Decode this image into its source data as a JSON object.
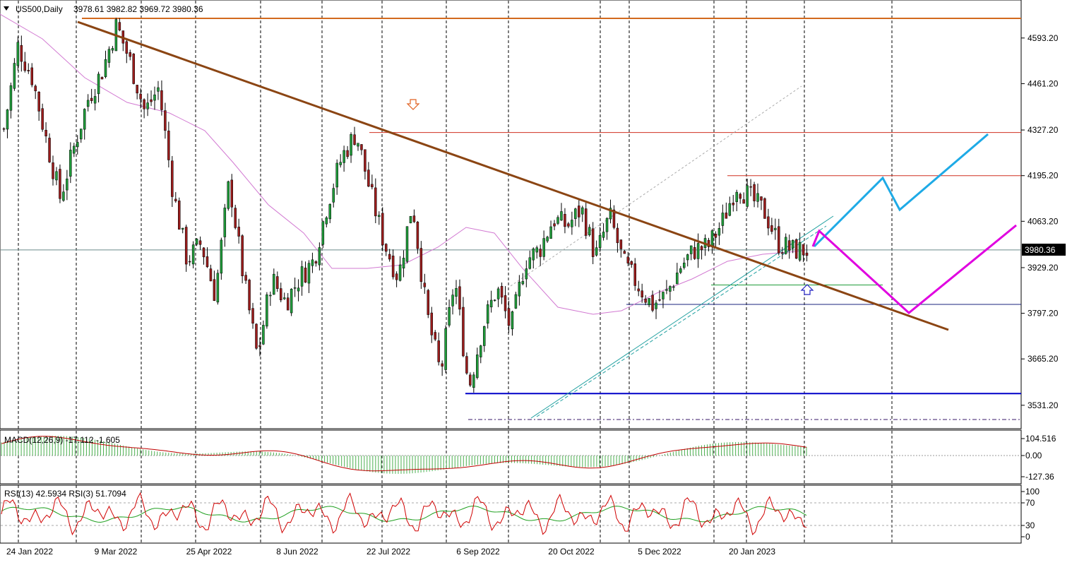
{
  "header": {
    "symbol": "US500,Daily",
    "ohlc": "3978.61 3982.82 3969.72 3980.36",
    "menu_icon": "triangle-down-icon"
  },
  "macd": {
    "label": "MACD(12,26,9) -17.112 -1.605",
    "ticks": [
      "104.516",
      "0.00",
      "-127.36"
    ]
  },
  "rsi": {
    "label": "RSI(13) 42.5934  RSI(3) 51.7094",
    "ticks": [
      "100",
      "70",
      "30",
      "0"
    ]
  },
  "current_price": "3980.36",
  "colors": {
    "bull": "#1f9c3a",
    "bear": "#9b1c1c",
    "trendline": "#8b4513",
    "resistance": "#d2691e",
    "hline_red": "#d03020",
    "support_blue": "#0000c8",
    "forecast_cyan": "#1eaae6",
    "forecast_magenta": "#e000e0",
    "ma": "#d27ad2",
    "arrow_up": "#2020c0",
    "arrow_down": "#e06020"
  },
  "chart_data": {
    "type": "candlestick",
    "title": "US500,Daily",
    "x_labels": [
      "24 Jan 2022",
      "9 Mar 2022",
      "25 Apr 2022",
      "8 Jun 2022",
      "22 Jul 2022",
      "6 Sep 2022",
      "20 Oct 2022",
      "5 Dec 2022",
      "20 Jan 2023"
    ],
    "y_ticks": [
      4593.2,
      4461.2,
      4327.2,
      4195.2,
      4063.2,
      3929.2,
      3797.2,
      3665.2,
      3531.2
    ],
    "ylim": [
      3490,
      4700
    ],
    "last_price": 3980.36,
    "price_path": [
      4330,
      4570,
      4480,
      4300,
      4130,
      4280,
      4420,
      4500,
      4631,
      4520,
      4380,
      4450,
      4150,
      3950,
      4000,
      3850,
      4180,
      3900,
      3670,
      3900,
      3830,
      3900,
      3950,
      4120,
      4250,
      4320,
      4150,
      4000,
      3900,
      4120,
      3800,
      3620,
      3900,
      3580,
      3760,
      3870,
      3750,
      3950,
      3980,
      4070,
      4050,
      4100,
      3960,
      4080,
      3940,
      3880,
      3820,
      3850,
      3930,
      3980,
      3990,
      4060,
      4170,
      4130,
      4090,
      4000,
      3980,
      3980
    ],
    "horizontal_levels": [
      4650,
      4320,
      4195,
      3825,
      3565,
      3490
    ],
    "grid": true,
    "indicators": [
      "MA",
      "MACD(12,26,9)",
      "RSI(13)",
      "RSI(3)"
    ]
  }
}
